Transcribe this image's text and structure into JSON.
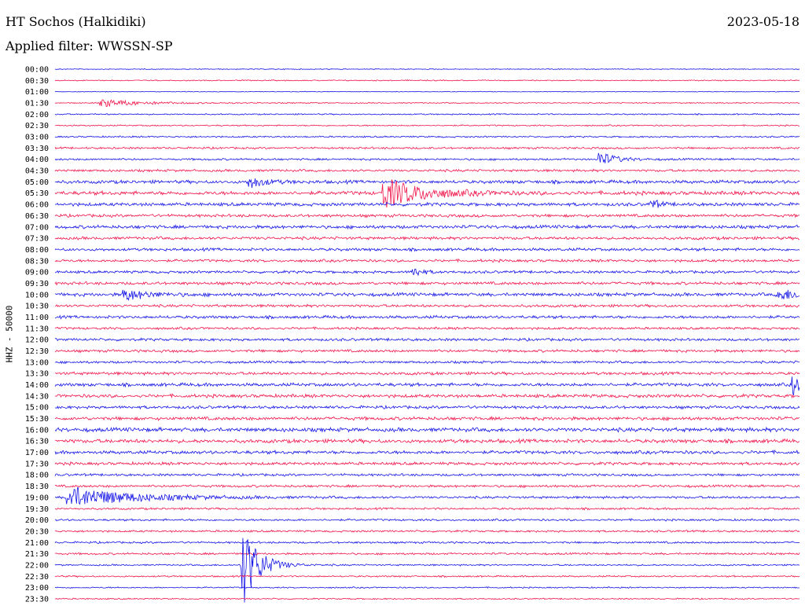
{
  "header": {
    "station": "HT Sochos (Halkidiki)",
    "date": "2023-05-18",
    "filter": "Applied filter: WWSSN-SP"
  },
  "chart_data": {
    "type": "line",
    "title": "HT Sochos (Halkidiki)",
    "ylabel": "HHZ - 50000",
    "colors": [
      "#1414e6",
      "#f0144a"
    ],
    "y_tick_labels": [
      "00:00",
      "00:30",
      "01:00",
      "01:30",
      "02:00",
      "02:30",
      "03:00",
      "03:30",
      "04:00",
      "04:30",
      "05:00",
      "05:30",
      "06:00",
      "06:30",
      "07:00",
      "07:30",
      "08:00",
      "08:30",
      "09:00",
      "09:30",
      "10:00",
      "10:30",
      "11:00",
      "11:30",
      "12:00",
      "12:30",
      "13:00",
      "13:30",
      "14:00",
      "14:30",
      "15:00",
      "15:30",
      "16:00",
      "16:30",
      "17:00",
      "17:30",
      "18:00",
      "18:30",
      "19:00",
      "19:30",
      "20:00",
      "20:30",
      "21:00",
      "21:30",
      "22:00",
      "22:30",
      "23:00",
      "23:30"
    ],
    "trace_noise": [
      0.6,
      0.8,
      0.5,
      0.8,
      1.0,
      1.0,
      1.2,
      1.5,
      1.5,
      1.8,
      2.5,
      2.8,
      2.5,
      2.2,
      2.5,
      2.2,
      2.2,
      2.0,
      2.0,
      2.2,
      2.5,
      2.0,
      2.2,
      1.8,
      2.0,
      2.0,
      1.8,
      2.2,
      2.5,
      2.5,
      2.2,
      2.5,
      3.0,
      2.8,
      2.5,
      2.2,
      1.8,
      1.8,
      1.8,
      1.5,
      1.5,
      1.5,
      1.5,
      1.5,
      1.2,
      1.2,
      1.0,
      1.0
    ],
    "events": [
      {
        "trace": 3,
        "x": 0.06,
        "amp": 5,
        "dur": 0.05
      },
      {
        "trace": 8,
        "x": 0.73,
        "amp": 10,
        "dur": 0.02
      },
      {
        "trace": 10,
        "x": 0.26,
        "amp": 8,
        "dur": 0.02
      },
      {
        "trace": 11,
        "x": 0.44,
        "amp": 20,
        "dur": 0.05
      },
      {
        "trace": 12,
        "x": 0.8,
        "amp": 8,
        "dur": 0.01
      },
      {
        "trace": 18,
        "x": 0.48,
        "amp": 8,
        "dur": 0.01
      },
      {
        "trace": 20,
        "x": 0.09,
        "amp": 8,
        "dur": 0.03
      },
      {
        "trace": 20,
        "x": 0.97,
        "amp": 7,
        "dur": 0.04
      },
      {
        "trace": 28,
        "x": 0.99,
        "amp": 12,
        "dur": 0.02
      },
      {
        "trace": 38,
        "x": 0.015,
        "amp": 14,
        "dur": 0.08
      },
      {
        "trace": 44,
        "x": 0.25,
        "amp": 60,
        "dur": 0.02
      }
    ]
  }
}
